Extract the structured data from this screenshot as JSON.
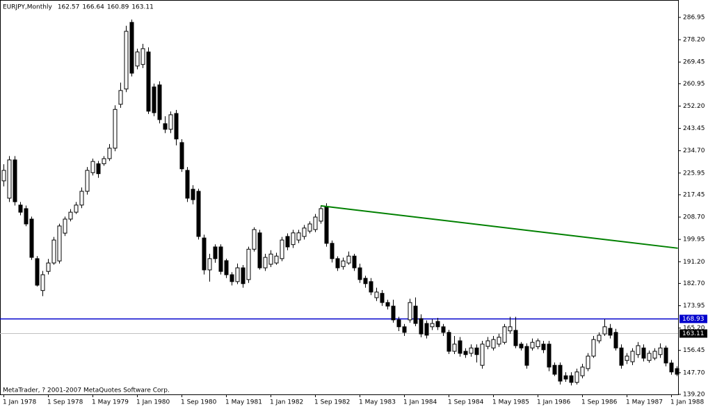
{
  "chart_data": {
    "type": "candlestick",
    "symbol": "EURJPY,Monthly",
    "ohlc": [
      162.57,
      166.64,
      160.89,
      163.11
    ],
    "footer": "MetaTrader, ? 2001-2007 MetaQuotes Software Corp.",
    "categories": [
      "1 Jan 1978",
      null,
      null,
      null,
      null,
      null,
      null,
      null,
      "1 Sep 1978",
      null,
      null,
      null,
      null,
      null,
      null,
      null,
      "1 May 1979",
      null,
      null,
      null,
      null,
      null,
      null,
      null,
      "1 Jan 1980",
      null,
      null,
      null,
      null,
      null,
      null,
      null,
      "1 Sep 1980",
      null,
      null,
      null,
      null,
      null,
      null,
      null,
      "1 May 1981",
      null,
      null,
      null,
      null,
      null,
      null,
      null,
      "1 Jan 1982",
      null,
      null,
      null,
      null,
      null,
      null,
      null,
      "1 Sep 1982",
      null,
      null,
      null,
      null,
      null,
      null,
      null,
      "1 May 1983",
      null,
      null,
      null,
      null,
      null,
      null,
      null,
      "1 Jan 1984",
      null,
      null,
      null,
      null,
      null,
      null,
      null,
      "1 Sep 1984",
      null,
      null,
      null,
      null,
      null,
      null,
      null,
      "1 May 1985",
      null,
      null,
      null,
      null,
      null,
      null,
      null,
      "1 Jan 1986",
      null,
      null,
      null,
      null,
      null,
      null,
      null,
      "1 Sep 1986",
      null,
      null,
      null,
      null,
      null,
      null,
      null,
      "1 May 1987",
      null,
      null,
      null,
      null,
      null,
      null,
      null,
      "1 Jan 1988",
      null
    ],
    "open": [
      222.9,
      216.1,
      231.1,
      213.4,
      212.0,
      207.9,
      192.4,
      179.9,
      187.4,
      190.7,
      191.5,
      202.4,
      207.9,
      210.6,
      213.4,
      218.8,
      226.1,
      229.6,
      229.6,
      231.6,
      235.7,
      252.9,
      258.9,
      285.0,
      267.9,
      268.5,
      273.4,
      259.7,
      260.5,
      245.3,
      243.1,
      249.3,
      237.9,
      227.0,
      219.6,
      218.8,
      200.5,
      188.0,
      197.0,
      197.0,
      191.6,
      186.1,
      183.4,
      188.8,
      184.2,
      196.1,
      202.5,
      188.8,
      190.2,
      190.7,
      192.4,
      201.1,
      197.9,
      199.7,
      201.1,
      203.2,
      203.8,
      207.1,
      212.8,
      198.4,
      192.4,
      189.3,
      190.7,
      193.4,
      188.8,
      184.7,
      183.4,
      177.1,
      178.8,
      175.2,
      173.8,
      168.4,
      165.7,
      168.4,
      173.8,
      168.9,
      167.0,
      165.7,
      167.8,
      165.7,
      163.5,
      156.1,
      160.2,
      156.1,
      155.3,
      157.4,
      150.6,
      158.0,
      157.4,
      158.9,
      159.6,
      164.1,
      164.3,
      158.9,
      158.0,
      157.4,
      157.9,
      158.9,
      158.9,
      150.6,
      150.6,
      146.5,
      146.5,
      143.9,
      146.5,
      149.3,
      154.2,
      160.2,
      162.9,
      165.1,
      163.5,
      157.4,
      152.5,
      152.0,
      154.8,
      157.4,
      152.5,
      153.4,
      154.8,
      157.4,
      151.5,
      149.3
    ],
    "high": [
      229.4,
      232.6,
      232.6,
      214.6,
      213.2,
      208.9,
      193.4,
      187.6,
      192.3,
      200.9,
      206.1,
      208.9,
      211.8,
      214.6,
      220.3,
      228.3,
      231.6,
      230.7,
      232.6,
      237.3,
      252.5,
      261.4,
      283.7,
      286.1,
      274.7,
      276.6,
      275.2,
      261.0,
      261.9,
      248.2,
      250.1,
      250.7,
      239.2,
      228.3,
      221.2,
      219.8,
      201.8,
      194.3,
      198.0,
      198.0,
      192.4,
      187.1,
      190.5,
      189.9,
      197.1,
      204.7,
      203.7,
      194.3,
      195.7,
      194.7,
      200.9,
      202.3,
      203.7,
      203.7,
      205.6,
      207.0,
      209.9,
      213.2,
      214.1,
      199.5,
      193.3,
      192.8,
      195.2,
      194.3,
      190.4,
      185.7,
      184.8,
      181.0,
      180.1,
      176.3,
      176.3,
      169.6,
      166.8,
      176.7,
      177.2,
      170.6,
      168.2,
      168.7,
      169.2,
      166.8,
      164.5,
      162.1,
      161.7,
      157.3,
      158.8,
      158.8,
      160.2,
      161.7,
      162.1,
      163.0,
      166.8,
      169.6,
      169.6,
      159.7,
      159.2,
      161.1,
      161.1,
      160.2,
      160.2,
      151.7,
      151.7,
      147.9,
      147.9,
      149.3,
      151.2,
      155.4,
      162.1,
      163.5,
      168.7,
      166.8,
      164.9,
      158.8,
      155.4,
      157.3,
      159.7,
      158.8,
      156.4,
      157.3,
      159.2,
      158.3,
      152.7,
      150.2
    ],
    "low": [
      220.7,
      214.6,
      213.2,
      209.4,
      205.1,
      191.9,
      181.5,
      177.7,
      186.2,
      190.0,
      190.5,
      201.3,
      207.0,
      209.9,
      212.2,
      217.5,
      225.0,
      224.1,
      228.8,
      230.7,
      234.5,
      251.5,
      257.7,
      263.8,
      266.6,
      267.1,
      249.1,
      248.2,
      245.4,
      241.6,
      241.6,
      236.8,
      226.4,
      214.6,
      213.7,
      199.9,
      186.2,
      183.4,
      190.8,
      186.2,
      184.8,
      181.9,
      182.4,
      181.0,
      182.9,
      195.2,
      188.1,
      187.6,
      189.1,
      190.0,
      191.4,
      195.7,
      196.6,
      198.5,
      199.9,
      202.3,
      202.8,
      206.1,
      197.1,
      190.9,
      187.6,
      188.1,
      190.0,
      187.6,
      182.9,
      181.0,
      178.1,
      175.8,
      173.9,
      172.5,
      167.3,
      164.0,
      162.1,
      167.3,
      165.9,
      161.6,
      161.1,
      164.4,
      164.4,
      162.1,
      155.0,
      155.0,
      154.0,
      153.5,
      154.0,
      151.7,
      149.3,
      156.9,
      156.4,
      157.8,
      158.8,
      163.0,
      157.3,
      156.4,
      149.3,
      156.4,
      156.9,
      155.4,
      148.3,
      146.4,
      143.1,
      144.1,
      142.7,
      143.1,
      145.5,
      148.3,
      153.5,
      159.2,
      162.1,
      161.1,
      156.4,
      149.3,
      151.1,
      150.7,
      153.5,
      152.1,
      151.6,
      152.6,
      153.5,
      150.2,
      146.9,
      146.4
    ],
    "close": [
      227.0,
      231.1,
      214.7,
      210.6,
      206.0,
      192.9,
      182.0,
      186.1,
      190.7,
      199.7,
      205.2,
      207.9,
      210.6,
      213.4,
      218.8,
      227.0,
      230.5,
      225.7,
      231.6,
      235.7,
      250.9,
      258.3,
      281.5,
      265.1,
      273.4,
      274.7,
      250.2,
      249.6,
      246.9,
      243.1,
      248.8,
      239.3,
      227.6,
      216.1,
      215.5,
      201.1,
      188.0,
      192.4,
      192.4,
      187.4,
      186.1,
      183.4,
      188.8,
      182.6,
      196.1,
      203.8,
      188.8,
      192.9,
      194.2,
      193.4,
      199.7,
      197.0,
      202.5,
      202.5,
      204.4,
      206.0,
      208.7,
      212.0,
      198.4,
      192.4,
      188.8,
      191.5,
      193.4,
      188.8,
      184.2,
      182.6,
      179.3,
      179.3,
      175.2,
      173.8,
      168.4,
      165.7,
      163.5,
      175.2,
      167.0,
      162.9,
      162.4,
      167.0,
      165.7,
      163.5,
      156.1,
      158.9,
      155.3,
      154.8,
      157.4,
      154.8,
      158.9,
      160.2,
      160.7,
      161.6,
      165.7,
      165.7,
      158.3,
      157.4,
      150.6,
      159.6,
      160.2,
      156.7,
      149.9,
      147.1,
      144.4,
      145.2,
      143.9,
      148.0,
      149.9,
      154.2,
      160.7,
      162.4,
      165.7,
      162.4,
      157.4,
      150.6,
      154.2,
      156.1,
      158.3,
      153.4,
      155.3,
      156.1,
      157.4,
      151.5,
      148.0,
      147.1
    ],
    "up_color": "#ffffff",
    "down_color": "#000000",
    "ylim": [
      139.2,
      293.77
    ],
    "yticks": [
      286.95,
      {
        "value": 278.2,
        "label": "278.20"
      },
      269.45,
      260.95,
      {
        "value": 252.2,
        "label": "252.20"
      },
      243.45,
      {
        "value": 234.7,
        "label": "234.70"
      },
      225.95,
      217.45,
      {
        "value": 208.7,
        "label": "208.70"
      },
      199.95,
      {
        "value": 191.2,
        "label": "191.20"
      },
      {
        "value": 182.7,
        "label": "182.70"
      },
      173.95,
      {
        "value": 165.2,
        "label": "165.20"
      },
      156.45,
      {
        "value": 147.7,
        "label": "147.70"
      },
      {
        "value": 139.2,
        "label": "139.20"
      }
    ],
    "hlines": [
      {
        "value": 168.93,
        "color": "#0000cc",
        "label_bg": "#0000cc"
      },
      {
        "value": 163.11,
        "color": "#c0c0c0",
        "label_bg": "#000000"
      }
    ],
    "trendline": {
      "color": "#008000",
      "x": [
        57,
        121.2
      ],
      "y": [
        213.1,
        196.5
      ]
    }
  }
}
